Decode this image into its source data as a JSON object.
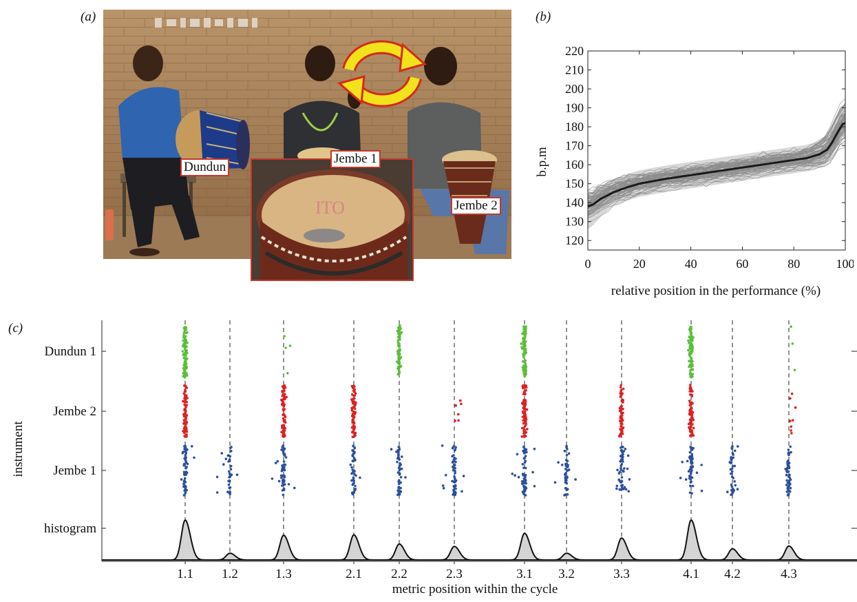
{
  "panels": {
    "a": "(a)",
    "b": "(b)",
    "c": "(c)"
  },
  "photo": {
    "labels": {
      "dundun": "Dundun",
      "jembe1": "Jembe 1",
      "jembe2": "Jembe 2"
    },
    "colors": {
      "wall": "#b08a62",
      "frame": "#c0392b",
      "cycle_arrow": "#f2e21b"
    }
  },
  "chart_data": [
    {
      "type": "line",
      "ylabel": "b.p.m",
      "xlabel": "relative position in the performance (%)",
      "xlim": [
        0,
        100
      ],
      "ylim": [
        115,
        220
      ],
      "xticks": [
        0,
        20,
        40,
        60,
        80,
        100
      ],
      "yticks": [
        120,
        130,
        140,
        150,
        160,
        170,
        180,
        190,
        200,
        210,
        220
      ],
      "mean_curve": {
        "x": [
          0,
          2,
          5,
          10,
          15,
          20,
          30,
          40,
          50,
          60,
          70,
          80,
          85,
          90,
          93,
          95,
          97,
          99,
          100
        ],
        "y": [
          138,
          139,
          142,
          145.5,
          148,
          150,
          152.5,
          154.5,
          156.5,
          158.5,
          160.5,
          162.5,
          163.5,
          165.5,
          168,
          172,
          177,
          181.5,
          182
        ]
      },
      "individual_curves": {
        "count": 80,
        "color": "#8c8c8c"
      },
      "band": {
        "color": "#d9d9d9"
      }
    },
    {
      "type": "scatter",
      "xlabel": "metric position within the cycle",
      "ylabel": "instrument",
      "categories": [
        "1.1",
        "1.2",
        "1.3",
        "2.1",
        "2.2",
        "2.3",
        "3.1",
        "3.2",
        "3.3",
        "4.1",
        "4.2",
        "4.3"
      ],
      "rows": [
        "Dundun 1",
        "Jembe 2",
        "Jembe 1",
        "histogram"
      ],
      "series": [
        {
          "name": "Dundun 1",
          "color": "#5cbf3a",
          "onsets_per_position": [
            85,
            0,
            4,
            0,
            70,
            0,
            85,
            0,
            0,
            90,
            0,
            3
          ]
        },
        {
          "name": "Jembe 2",
          "color": "#e02020",
          "onsets_per_position": [
            80,
            0,
            70,
            75,
            0,
            6,
            80,
            0,
            65,
            80,
            0,
            8
          ]
        },
        {
          "name": "Jembe 1",
          "color": "#2c4f9e",
          "onsets_per_position": [
            60,
            35,
            55,
            45,
            50,
            55,
            60,
            40,
            55,
            55,
            40,
            55
          ]
        }
      ],
      "histogram": {
        "name": "histogram",
        "relative_heights": [
          1.0,
          0.17,
          0.62,
          0.63,
          0.4,
          0.34,
          0.67,
          0.17,
          0.55,
          1.0,
          0.28,
          0.35
        ]
      }
    }
  ]
}
